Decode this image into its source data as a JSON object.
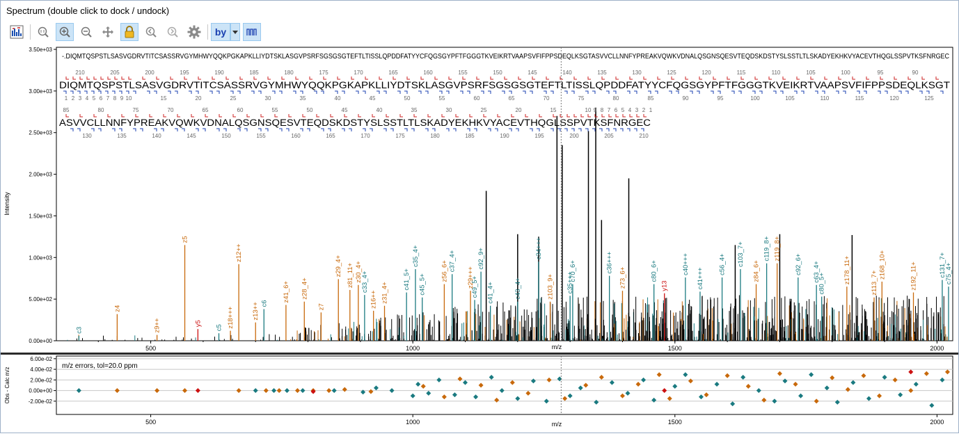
{
  "window": {
    "title": "Spectrum (double click to dock / undock)"
  },
  "toolbar": {
    "buttons": [
      {
        "icon": "spectrum-view-icon",
        "active": false
      },
      {
        "icon": "zoom-fit-icon",
        "active": false
      },
      {
        "icon": "zoom-in-icon",
        "active": true
      },
      {
        "icon": "zoom-out-icon",
        "active": false
      },
      {
        "icon": "pan-icon",
        "active": false
      },
      {
        "icon": "lock-icon",
        "active": true
      },
      {
        "icon": "zoom-prev-icon",
        "active": false
      },
      {
        "icon": "zoom-next-icon",
        "active": false
      },
      {
        "icon": "settings-gear-icon",
        "active": false
      },
      {
        "icon": "ion-types-icon",
        "active": true,
        "label": "by"
      },
      {
        "icon": "chevron-down-icon",
        "active": true
      },
      {
        "icon": "peaks-icon",
        "active": true
      }
    ]
  },
  "colors": {
    "z_ion": "#c8690b",
    "c_ion": "#1a7a80",
    "y_ion": "#cc1111",
    "peak": "#000000",
    "frame": "#000000"
  },
  "chart_data": [
    {
      "type": "bar",
      "title": "",
      "xlabel": "m/z",
      "ylabel": "Intensity",
      "xlim": [
        320,
        2030
      ],
      "ylim": [
        0,
        3500
      ],
      "xticks": [
        "500",
        "1000",
        "1500",
        "2000"
      ],
      "yticks": [
        "0.00e+00",
        "5.00e+02",
        "1.00e+03",
        "1.50e+03",
        "2.00e+03",
        "2.50e+03",
        "3.00e+03",
        "3.50e+03"
      ],
      "grid": false,
      "cursor_mz": 1283,
      "sequence_full": "-.DIQMTQSPSTLSASVGDRVTITCSASSRVGYMHWYQQKPGKAPKLLIYDTSKLASGVPSRFSGSGSGTEFTLTISSLQPDDFATYYCFQGSGYPFTFGGGTKVEIKRTVAAPSVFIFPPSDEQLKSGTASVVCLLNNFYPREAKVQWKVDNALQSGNSQESVTEQDSKDSTYSLSSTLTLSKADYEKHKVYACEVTHQGLSSPVTKSFNRGEC",
      "sequence_line1": "DIQMTQSPSTLSASVGDRVTITCSASSRVGYMHWYQQKPGKAPKLLIYDTSKLASGVPSRFSGSGSGTEFTLTISSLQPDDFATYYCFQGSGYPFTFGGGTKVEIKRTVAAPSVFIFPPSDEQLKSGT",
      "sequence_line2": "ASVVCLLNNFYPREAKVQWKVDNALQSGNSQESVTEQDSKDSTYSLSSTLTLSKADYEKHKVYACEVTHQGLSSPVTKSFNRGEC",
      "line1_top_numbers": [
        "210",
        "205",
        "200",
        "195",
        "190",
        "185",
        "180",
        "175",
        "170",
        "165",
        "160",
        "155",
        "150",
        "145",
        "140",
        "135",
        "130",
        "125",
        "120",
        "115",
        "110",
        "105",
        "100",
        "95",
        "90"
      ],
      "line1_bottom_numbers": [
        "1",
        "2",
        "3",
        "4",
        "5",
        "6",
        "7",
        "8",
        "9",
        "10",
        "15",
        "20",
        "25",
        "30",
        "35",
        "40",
        "45",
        "50",
        "55",
        "60",
        "65",
        "70",
        "75",
        "80",
        "85",
        "90",
        "95",
        "100",
        "105",
        "110",
        "115",
        "120",
        "125"
      ],
      "line2_top_numbers": [
        "85",
        "80",
        "75",
        "70",
        "65",
        "60",
        "55",
        "50",
        "45",
        "40",
        "35",
        "30",
        "25",
        "20",
        "15",
        "10",
        "9",
        "8",
        "7",
        "6",
        "5",
        "4",
        "3",
        "2",
        "1"
      ],
      "line2_bottom_numbers": [
        "130",
        "135",
        "140",
        "145",
        "150",
        "155",
        "160",
        "165",
        "170",
        "175",
        "180",
        "185",
        "190",
        "195",
        "200",
        "205",
        "210"
      ],
      "annotated_peaks": [
        {
          "mz": 363,
          "intensity": 60,
          "label": "c3",
          "ion": "c"
        },
        {
          "mz": 436,
          "intensity": 320,
          "label": "z4",
          "ion": "z"
        },
        {
          "mz": 512,
          "intensity": 70,
          "label": "z9++",
          "ion": "z"
        },
        {
          "mz": 565,
          "intensity": 1150,
          "label": "z5",
          "ion": "z"
        },
        {
          "mz": 590,
          "intensity": 140,
          "label": "y5",
          "ion": "y"
        },
        {
          "mz": 630,
          "intensity": 90,
          "label": "c5",
          "ion": "c"
        },
        {
          "mz": 668,
          "intensity": 920,
          "label": "z12++",
          "ion": "z"
        },
        {
          "mz": 652,
          "intensity": 120,
          "label": "z18+++",
          "ion": "z"
        },
        {
          "mz": 700,
          "intensity": 220,
          "label": "z13++",
          "ion": "z"
        },
        {
          "mz": 716,
          "intensity": 380,
          "label": "c6",
          "ion": "c"
        },
        {
          "mz": 758,
          "intensity": 430,
          "label": "z41_6+",
          "ion": "z"
        },
        {
          "mz": 793,
          "intensity": 470,
          "label": "z28_4+",
          "ion": "z"
        },
        {
          "mz": 825,
          "intensity": 340,
          "label": "z7",
          "ion": "z"
        },
        {
          "mz": 858,
          "intensity": 740,
          "label": "z29_4+",
          "ion": "z"
        },
        {
          "mz": 880,
          "intensity": 610,
          "label": "z81_11+",
          "ion": "z"
        },
        {
          "mz": 896,
          "intensity": 670,
          "label": "z30_4+",
          "ion": "z"
        },
        {
          "mz": 908,
          "intensity": 550,
          "label": "c33_4+",
          "ion": "c"
        },
        {
          "mz": 925,
          "intensity": 360,
          "label": "z16++",
          "ion": "z"
        },
        {
          "mz": 946,
          "intensity": 420,
          "label": "z31_4+",
          "ion": "z"
        },
        {
          "mz": 988,
          "intensity": 580,
          "label": "c41_5+",
          "ion": "c"
        },
        {
          "mz": 1005,
          "intensity": 860,
          "label": "c35_4+",
          "ion": "c"
        },
        {
          "mz": 1018,
          "intensity": 520,
          "label": "c45_5+",
          "ion": "c"
        },
        {
          "mz": 1060,
          "intensity": 680,
          "label": "z56_6+",
          "ion": "z"
        },
        {
          "mz": 1075,
          "intensity": 800,
          "label": "c37_4+",
          "ion": "c"
        },
        {
          "mz": 1110,
          "intensity": 600,
          "label": "z29+++",
          "ion": "z"
        },
        {
          "mz": 1130,
          "intensity": 830,
          "label": "c92_9+",
          "ion": "c"
        },
        {
          "mz": 1118,
          "intensity": 490,
          "label": "c49_5+",
          "ion": "c"
        },
        {
          "mz": 1148,
          "intensity": 420,
          "label": "c41_4+",
          "ion": "c"
        },
        {
          "mz": 1200,
          "intensity": 470,
          "label": "c43_4+",
          "ion": "c"
        },
        {
          "mz": 1240,
          "intensity": 950,
          "label": "c34+++",
          "ion": "c"
        },
        {
          "mz": 1262,
          "intensity": 470,
          "label": "z103_9+",
          "ion": "z"
        },
        {
          "mz": 1305,
          "intensity": 680,
          "label": "c70_6+",
          "ion": "c"
        },
        {
          "mz": 1300,
          "intensity": 540,
          "label": "c35+++",
          "ion": "c"
        },
        {
          "mz": 1375,
          "intensity": 780,
          "label": "c36+++",
          "ion": "c"
        },
        {
          "mz": 1400,
          "intensity": 600,
          "label": "z73_6+",
          "ion": "z"
        },
        {
          "mz": 1460,
          "intensity": 680,
          "label": "c80_6+",
          "ion": "c"
        },
        {
          "mz": 1480,
          "intensity": 570,
          "label": "y13",
          "ion": "y"
        },
        {
          "mz": 1520,
          "intensity": 760,
          "label": "c40+++",
          "ion": "c"
        },
        {
          "mz": 1548,
          "intensity": 590,
          "label": "c41+++",
          "ion": "c"
        },
        {
          "mz": 1590,
          "intensity": 760,
          "label": "c56_4+",
          "ion": "c"
        },
        {
          "mz": 1625,
          "intensity": 860,
          "label": "c103_7+",
          "ion": "c"
        },
        {
          "mz": 1655,
          "intensity": 680,
          "label": "z84_6+",
          "ion": "z"
        },
        {
          "mz": 1675,
          "intensity": 930,
          "label": "c119_8+",
          "ion": "c"
        },
        {
          "mz": 1695,
          "intensity": 930,
          "label": "z119_8+",
          "ion": "z"
        },
        {
          "mz": 1735,
          "intensity": 760,
          "label": "c92_6+",
          "ion": "c"
        },
        {
          "mz": 1770,
          "intensity": 670,
          "label": "c63_4+",
          "ion": "c"
        },
        {
          "mz": 1780,
          "intensity": 530,
          "label": "c80_5+",
          "ion": "c"
        },
        {
          "mz": 1828,
          "intensity": 650,
          "label": "z178_11+",
          "ion": "z"
        },
        {
          "mz": 1880,
          "intensity": 520,
          "label": "z113_7+",
          "ion": "z"
        },
        {
          "mz": 1895,
          "intensity": 710,
          "label": "z168_10+",
          "ion": "z"
        },
        {
          "mz": 1955,
          "intensity": 580,
          "label": "z192_11+",
          "ion": "z"
        },
        {
          "mz": 2010,
          "intensity": 730,
          "label": "c131_7+",
          "ion": "c"
        },
        {
          "mz": 2022,
          "intensity": 650,
          "label": "c75_4+",
          "ion": "c"
        }
      ],
      "tall_peaks": [
        {
          "mz": 1140,
          "intensity": 1800
        },
        {
          "mz": 1275,
          "intensity": 2700
        },
        {
          "mz": 1285,
          "intensity": 2350
        },
        {
          "mz": 1335,
          "intensity": 2520
        },
        {
          "mz": 1349,
          "intensity": 2800
        },
        {
          "mz": 1412,
          "intensity": 1950
        },
        {
          "mz": 1360,
          "intensity": 1450
        },
        {
          "mz": 1200,
          "intensity": 1280
        },
        {
          "mz": 1240,
          "intensity": 1250
        },
        {
          "mz": 1700,
          "intensity": 1280
        },
        {
          "mz": 1838,
          "intensity": 1270
        },
        {
          "mz": 1615,
          "intensity": 1150
        }
      ]
    },
    {
      "type": "scatter",
      "title": "m/z errors, tol=20.0 ppm",
      "xlabel": "m/z",
      "ylabel": "Obs - Calc m/z",
      "xlim": [
        320,
        2030
      ],
      "ylim": [
        -0.045,
        0.065
      ],
      "xticks": [
        "500",
        "1000",
        "1500",
        "2000"
      ],
      "yticks": [
        "6.00e-02",
        "4.00e-02",
        "2.00e-02",
        "0.00e+00",
        "-2.00e-02"
      ],
      "grid": true,
      "series": [
        {
          "ion": "c",
          "points": [
            [
              363,
              0.0
            ],
            [
              700,
              0.0
            ],
            [
              735,
              0.0
            ],
            [
              760,
              0.0
            ],
            [
              790,
              0.0
            ],
            [
              850,
              0.0
            ],
            [
              905,
              -0.003
            ],
            [
              930,
              0.005
            ],
            [
              960,
              0.0
            ],
            [
              1000,
              -0.01
            ],
            [
              1010,
              0.012
            ],
            [
              1030,
              -0.005
            ],
            [
              1050,
              0.02
            ],
            [
              1080,
              -0.008
            ],
            [
              1100,
              0.015
            ],
            [
              1120,
              -0.012
            ],
            [
              1150,
              0.025
            ],
            [
              1170,
              0.0
            ],
            [
              1200,
              -0.015
            ],
            [
              1230,
              0.018
            ],
            [
              1255,
              -0.02
            ],
            [
              1280,
              0.022
            ],
            [
              1300,
              -0.01
            ],
            [
              1320,
              0.005
            ],
            [
              1350,
              -0.022
            ],
            [
              1380,
              0.015
            ],
            [
              1410,
              -0.005
            ],
            [
              1440,
              0.02
            ],
            [
              1460,
              -0.018
            ],
            [
              1500,
              0.008
            ],
            [
              1520,
              0.03
            ],
            [
              1550,
              -0.012
            ],
            [
              1580,
              0.012
            ],
            [
              1610,
              -0.025
            ],
            [
              1630,
              0.025
            ],
            [
              1660,
              0.0
            ],
            [
              1690,
              -0.02
            ],
            [
              1710,
              0.018
            ],
            [
              1740,
              -0.01
            ],
            [
              1760,
              0.03
            ],
            [
              1790,
              0.005
            ],
            [
              1810,
              -0.022
            ],
            [
              1840,
              0.015
            ],
            [
              1870,
              -0.015
            ],
            [
              1900,
              0.025
            ],
            [
              1930,
              -0.008
            ],
            [
              1960,
              0.012
            ],
            [
              1990,
              -0.028
            ],
            [
              2010,
              0.02
            ]
          ]
        },
        {
          "ion": "z",
          "points": [
            [
              436,
              0.0
            ],
            [
              512,
              0.0
            ],
            [
              565,
              0.0
            ],
            [
              668,
              0.0
            ],
            [
              720,
              0.0
            ],
            [
              745,
              0.0
            ],
            [
              780,
              0.0
            ],
            [
              810,
              0.0
            ],
            [
              840,
              0.0
            ],
            [
              870,
              0.002
            ],
            [
              920,
              -0.002
            ],
            [
              1020,
              0.008
            ],
            [
              1060,
              -0.012
            ],
            [
              1090,
              0.022
            ],
            [
              1130,
              0.01
            ],
            [
              1160,
              -0.018
            ],
            [
              1190,
              0.015
            ],
            [
              1220,
              -0.005
            ],
            [
              1260,
              0.02
            ],
            [
              1290,
              -0.015
            ],
            [
              1330,
              0.01
            ],
            [
              1360,
              0.025
            ],
            [
              1400,
              -0.01
            ],
            [
              1430,
              0.012
            ],
            [
              1470,
              0.03
            ],
            [
              1490,
              -0.015
            ],
            [
              1530,
              0.018
            ],
            [
              1560,
              -0.008
            ],
            [
              1600,
              0.028
            ],
            [
              1640,
              0.008
            ],
            [
              1670,
              -0.018
            ],
            [
              1700,
              0.032
            ],
            [
              1730,
              0.012
            ],
            [
              1770,
              -0.02
            ],
            [
              1800,
              0.024
            ],
            [
              1830,
              0.002
            ],
            [
              1860,
              0.028
            ],
            [
              1890,
              -0.01
            ],
            [
              1920,
              0.02
            ],
            [
              1950,
              0.0
            ],
            [
              1980,
              0.032
            ],
            [
              2020,
              0.035
            ]
          ]
        },
        {
          "ion": "y",
          "points": [
            [
              590,
              0.0
            ],
            [
              810,
              -0.002
            ],
            [
              1480,
              0.0
            ],
            [
              1950,
              0.035
            ]
          ]
        }
      ]
    }
  ]
}
